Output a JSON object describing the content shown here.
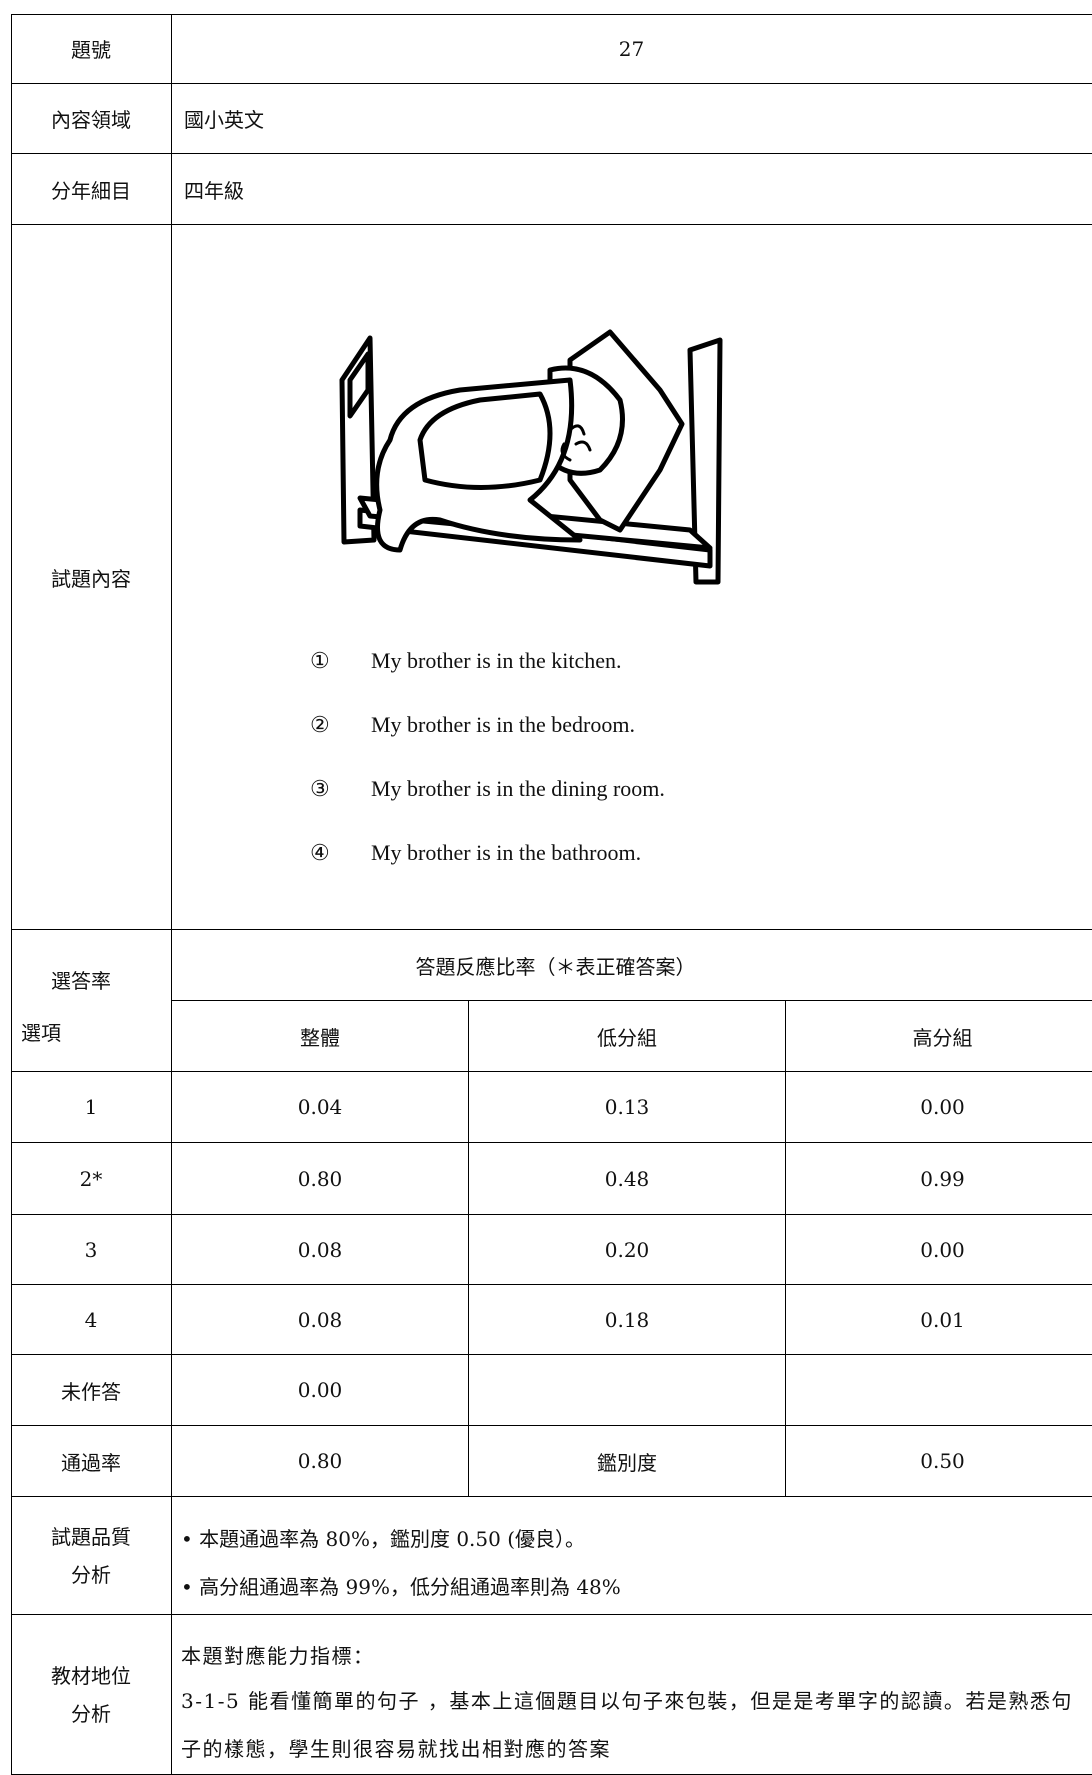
{
  "item": {
    "label": "題號",
    "value": "27"
  },
  "domain": {
    "label": "內容領域",
    "value": "國小英文"
  },
  "grade": {
    "label": "分年細目",
    "value": "四年級"
  },
  "content": {
    "label": "試題內容",
    "options": [
      {
        "marker": "①",
        "text": "My brother is in the kitchen."
      },
      {
        "marker": "②",
        "text": "My brother is in the bedroom."
      },
      {
        "marker": "③",
        "text": "My brother is in the dining room."
      },
      {
        "marker": "④",
        "text": "My brother is in the bathroom."
      }
    ]
  },
  "responses": {
    "corner_top": "選答率",
    "corner_bottom": "選項",
    "title": "答題反應比率（＊表正確答案）",
    "columns": [
      "整體",
      "低分組",
      "高分組"
    ],
    "rows": [
      {
        "option": "1",
        "values": [
          "0.04",
          "0.13",
          "0.00"
        ]
      },
      {
        "option": "2*",
        "values": [
          "0.80",
          "0.48",
          "0.99"
        ]
      },
      {
        "option": "3",
        "values": [
          "0.08",
          "0.20",
          "0.00"
        ]
      },
      {
        "option": "4",
        "values": [
          "0.08",
          "0.18",
          "0.01"
        ]
      },
      {
        "option": "未作答",
        "values": [
          "0.00"
        ]
      }
    ],
    "pass_row": [
      "通過率",
      "0.80",
      "鑑別度",
      "0.50"
    ]
  },
  "quality": {
    "label": [
      "試題品質",
      "分析"
    ],
    "bullets": [
      "本題通過率為 80%，鑑別度 0.50 (優良）。",
      "高分組通過率為 99%，低分組通過率則為 48%"
    ]
  },
  "position": {
    "label": [
      "教材地位",
      "分析"
    ],
    "heading": "本題對應能力指標：",
    "text": "3-1-5 能看懂簡單的句子 ，基本上這個題目以句子來包裝，但是是考單字的認讀。若是熟悉句子的樣態，學生則很容易就找出相對應的答案"
  }
}
